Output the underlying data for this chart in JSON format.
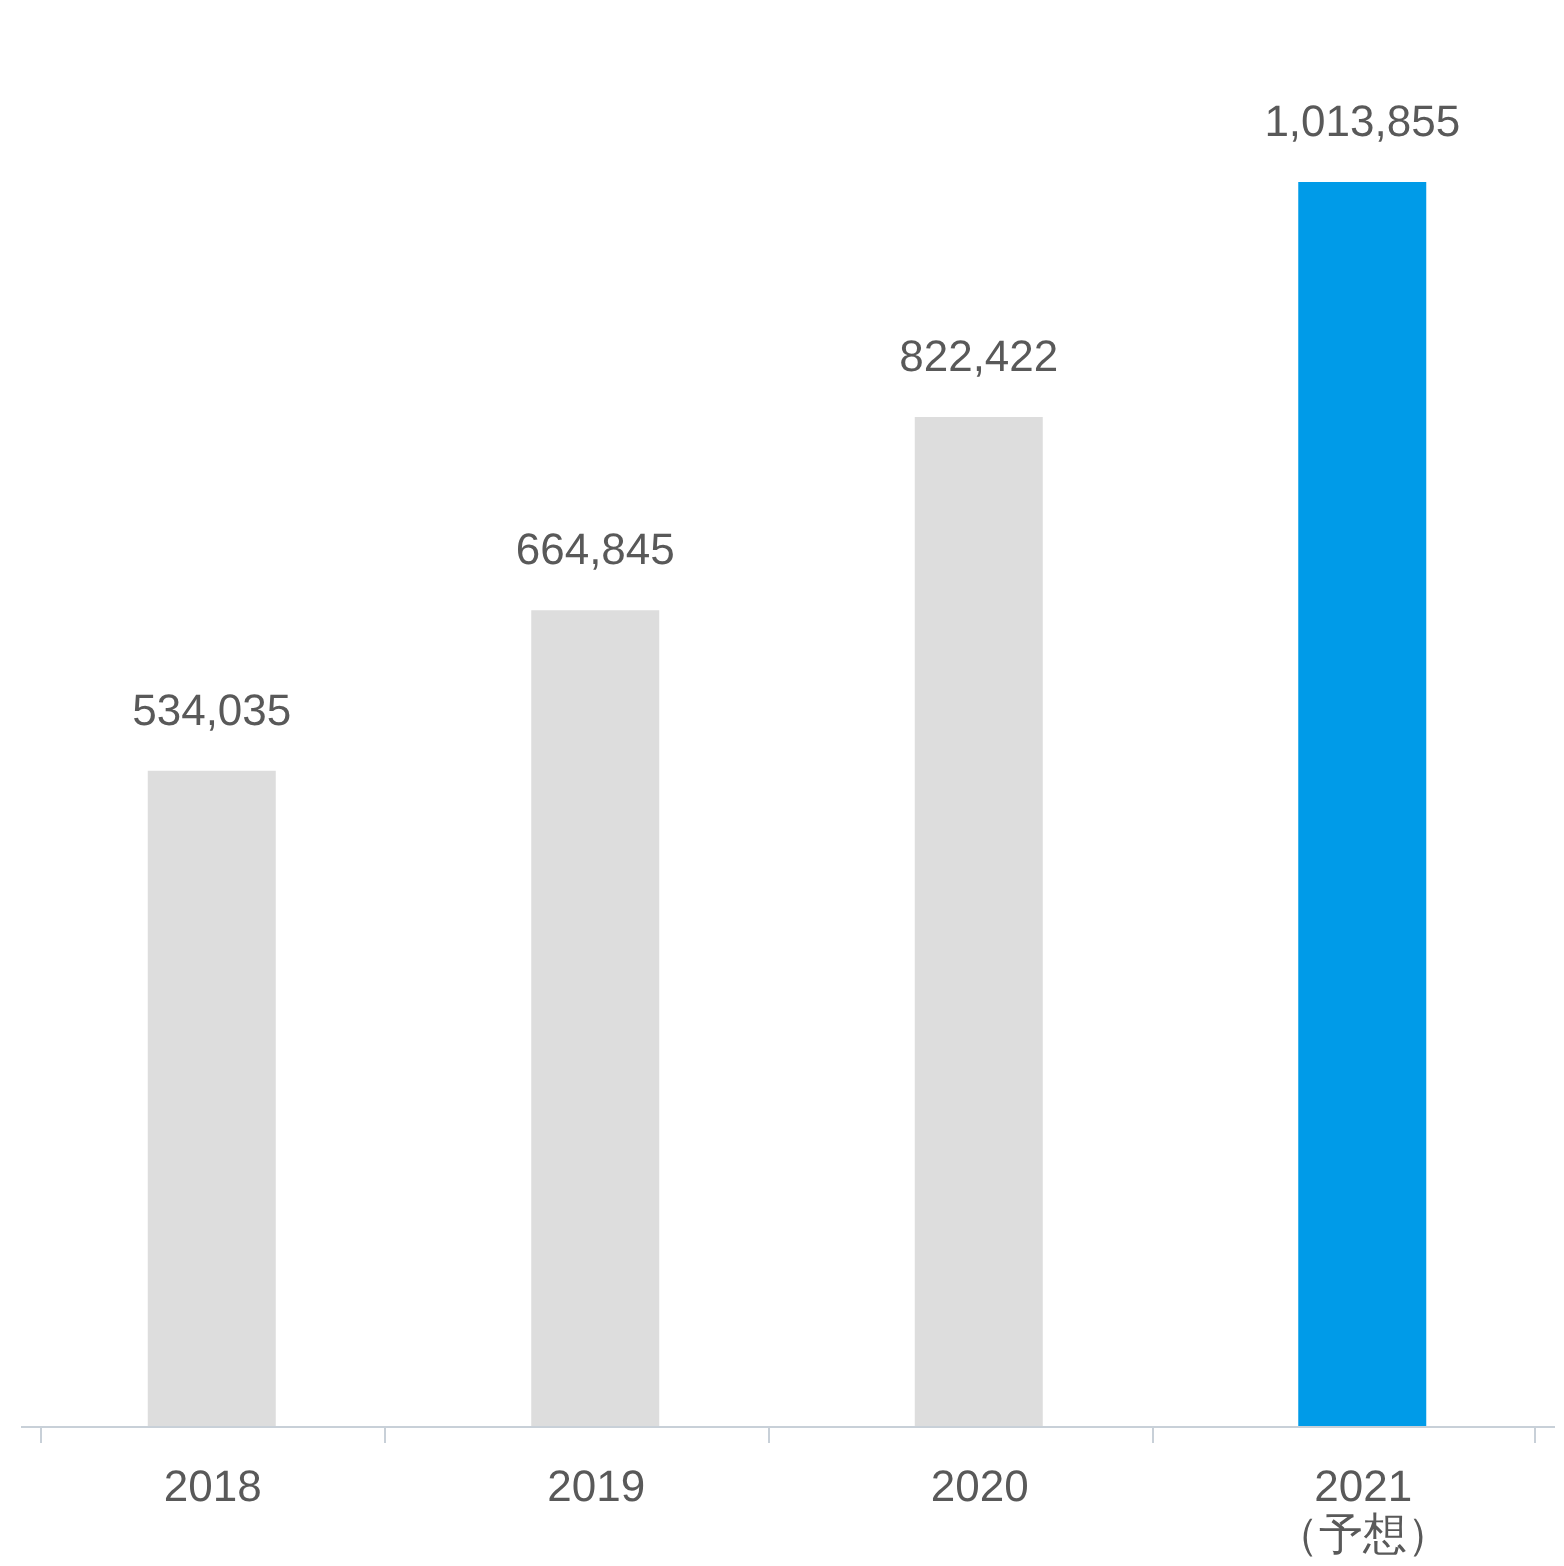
{
  "chart_data": {
    "type": "bar",
    "categories": [
      "2018",
      "2019",
      "2020",
      "2021\n（予想）"
    ],
    "values": [
      534035,
      664845,
      822422,
      1013855
    ],
    "value_labels": [
      "534,035",
      "664,845",
      "822,422",
      "1,013,855"
    ],
    "colors": [
      "#dddddd",
      "#dddddd",
      "#dddddd",
      "#009be8"
    ],
    "grid": false
  }
}
